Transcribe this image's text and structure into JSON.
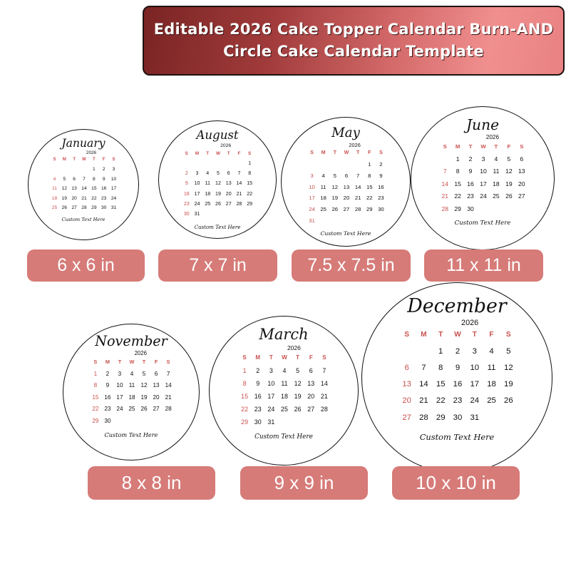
{
  "banner": {
    "line1": "Editable 2026 Cake Topper Calendar Burn-AND",
    "line2": "Circle Cake Calendar Template",
    "gradient_start": "#7a2424",
    "gradient_end": "#f08f8f"
  },
  "accent_color": "#c9514e",
  "badge_color": "#d67b78",
  "weekday_headers": [
    "S",
    "M",
    "T",
    "W",
    "T",
    "F",
    "S"
  ],
  "calendars": [
    {
      "month": "January",
      "year": "2026",
      "first_weekday": 4,
      "days": 31,
      "custom_text": "Custom Text Here",
      "size_label": "6 x 6 in"
    },
    {
      "month": "August",
      "year": "2026",
      "first_weekday": 6,
      "days": 31,
      "custom_text": "Custom Text Here",
      "size_label": "7 x 7 in"
    },
    {
      "month": "May",
      "year": "2026",
      "first_weekday": 5,
      "days": 31,
      "custom_text": "Custom Text Here",
      "size_label": "7.5 x 7.5 in"
    },
    {
      "month": "June",
      "year": "2026",
      "first_weekday": 1,
      "days": 30,
      "custom_text": "Custom Text Here",
      "size_label": "11 x 11 in"
    },
    {
      "month": "November",
      "year": "2026",
      "first_weekday": 0,
      "days": 30,
      "custom_text": "Custom Text Here",
      "size_label": "8 x 8 in"
    },
    {
      "month": "March",
      "year": "2026",
      "first_weekday": 0,
      "days": 31,
      "custom_text": "Custom Text Here",
      "size_label": "9 x 9 in"
    },
    {
      "month": "December",
      "year": "2026",
      "first_weekday": 2,
      "days": 31,
      "custom_text": "Custom Text Here",
      "size_label": "10 x 10 in"
    }
  ]
}
